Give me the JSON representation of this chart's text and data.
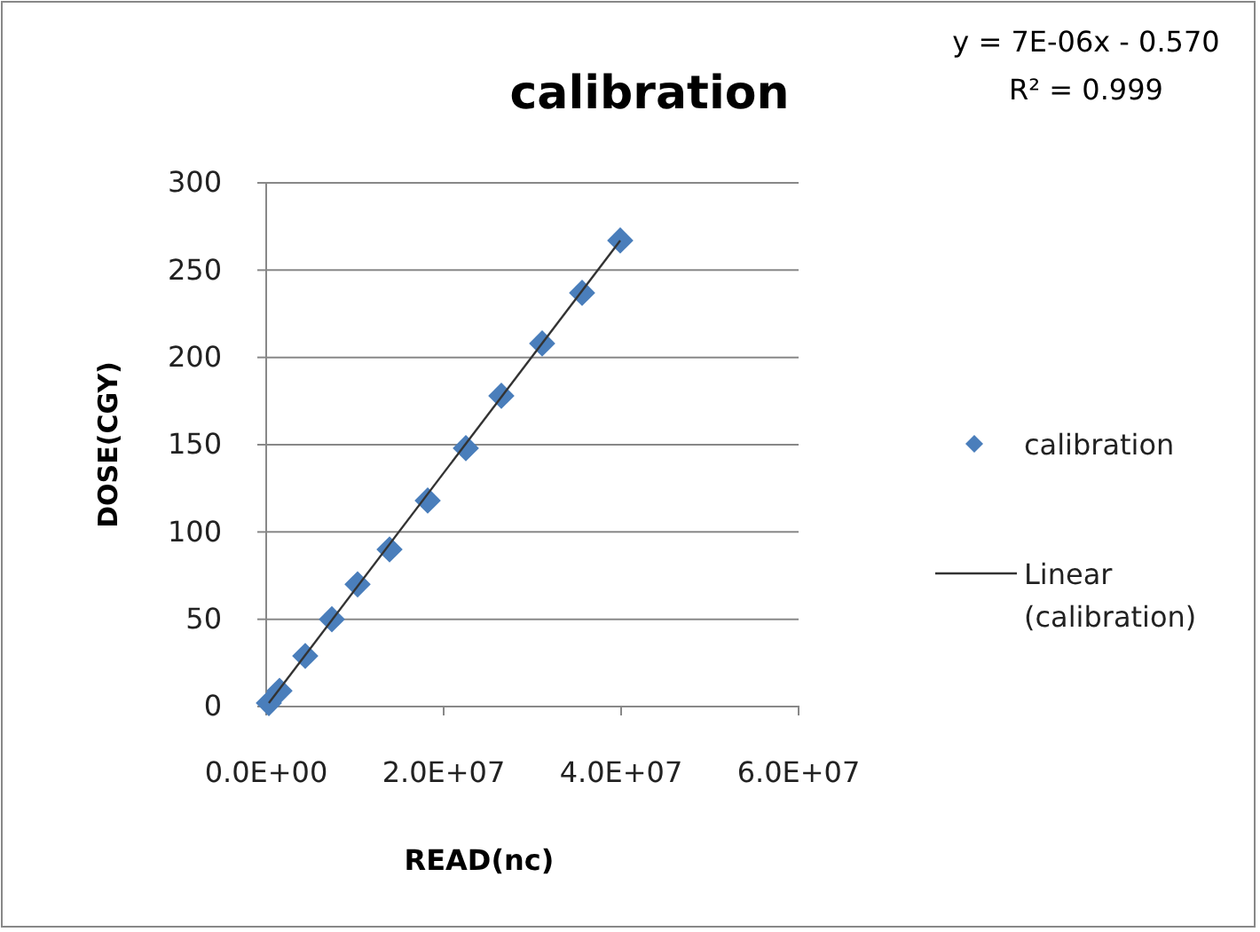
{
  "chart_data": {
    "type": "scatter",
    "title": "calibration",
    "xlabel": "READ(nc)",
    "ylabel": "DOSE(CGY)",
    "annotations": [
      "y = 7E-06x - 0.570",
      "R² = 0.999"
    ],
    "xlim": [
      0,
      60000000
    ],
    "xticks": [
      {
        "value": 0,
        "label": "0.0E+00"
      },
      {
        "value": 20000000,
        "label": "2.0E+07"
      },
      {
        "value": 40000000,
        "label": "4.0E+07"
      },
      {
        "value": 60000000,
        "label": "6.0E+07"
      }
    ],
    "ylim": [
      0,
      300
    ],
    "yticks": [
      0,
      50,
      100,
      150,
      200,
      250,
      300
    ],
    "grid": "y",
    "legend": "right",
    "series": [
      {
        "name": "calibration",
        "marker": "diamond",
        "color": "#4a7ebb",
        "x": [
          300000,
          1500000,
          4400000,
          7400000,
          10300000,
          13900000,
          18200000,
          22500000,
          26500000,
          31100000,
          35600000,
          39900000
        ],
        "values": [
          2,
          9,
          29,
          50,
          70,
          90,
          118,
          148,
          178,
          208,
          237,
          267
        ]
      },
      {
        "name": "Linear (calibration)",
        "type": "line",
        "color": "#333333",
        "marker": "none",
        "line_style": "solid",
        "x": [
          300000,
          39900000
        ],
        "values": [
          2,
          267
        ]
      }
    ]
  }
}
